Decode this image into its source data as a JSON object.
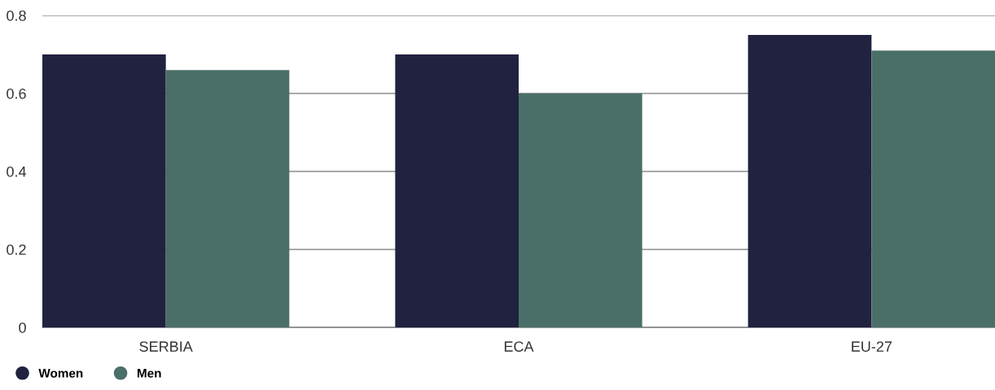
{
  "chart_data": {
    "type": "bar",
    "categories": [
      "SERBIA",
      "ECA",
      "EU-27"
    ],
    "series": [
      {
        "name": "Women",
        "color": "#21223f",
        "values": [
          0.7,
          0.7,
          0.75
        ]
      },
      {
        "name": "Men",
        "color": "#4a6f68",
        "values": [
          0.66,
          0.6,
          0.71
        ]
      }
    ],
    "ylim": [
      0,
      0.8
    ],
    "yticks": [
      {
        "value": 0,
        "label": "0"
      },
      0.2,
      0.4,
      0.6,
      0.8
    ],
    "grid": "y",
    "legend": "bottom left",
    "marker": "circle"
  }
}
